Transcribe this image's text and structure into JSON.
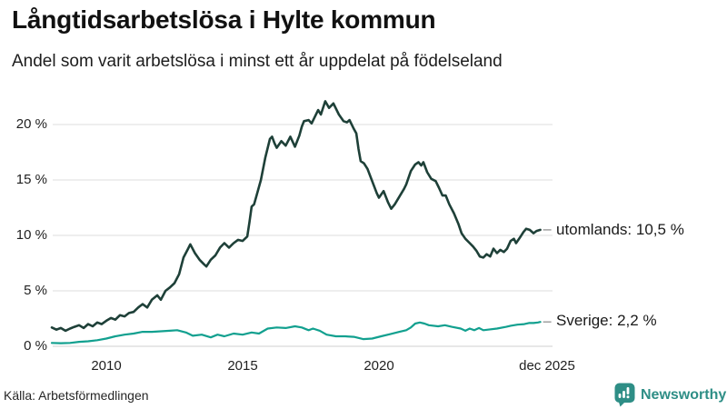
{
  "chart_data": {
    "type": "line",
    "title": "Långtidsarbetslösa i Hylte kommun",
    "subtitle": "Andel som varit arbetslösa i minst ett år uppdelat på födelseland",
    "xlabel": "",
    "ylabel": "",
    "xlim": [
      2008,
      2026.3
    ],
    "ylim": [
      0,
      22.5
    ],
    "grid": "horizontal",
    "legend_position": "end-of-line labels at right",
    "y_ticks": [
      {
        "label": "20 %",
        "value": 20
      },
      {
        "label": "15 %",
        "value": 15
      },
      {
        "label": "10 %",
        "value": 10
      },
      {
        "label": "5 %",
        "value": 5
      },
      {
        "label": "0 %",
        "value": 0
      }
    ],
    "x_ticks": [
      {
        "label": "2010",
        "year": 2010
      },
      {
        "label": "2015",
        "year": 2015
      },
      {
        "label": "2020",
        "year": 2020
      },
      {
        "label": "dec 2025",
        "year": 2025.92
      }
    ],
    "series": [
      {
        "name": "utomlands",
        "color": "#1e4038",
        "end_value": 10.5,
        "end_label": "utomlands: 10,5 %",
        "points": [
          [
            2008.0,
            1.7
          ],
          [
            2008.17,
            1.5
          ],
          [
            2008.33,
            1.65
          ],
          [
            2008.5,
            1.4
          ],
          [
            2008.67,
            1.6
          ],
          [
            2008.83,
            1.75
          ],
          [
            2009.0,
            1.9
          ],
          [
            2009.17,
            1.65
          ],
          [
            2009.33,
            2.0
          ],
          [
            2009.5,
            1.8
          ],
          [
            2009.67,
            2.15
          ],
          [
            2009.83,
            2.0
          ],
          [
            2010.0,
            2.3
          ],
          [
            2010.17,
            2.55
          ],
          [
            2010.33,
            2.4
          ],
          [
            2010.5,
            2.8
          ],
          [
            2010.67,
            2.7
          ],
          [
            2010.83,
            3.0
          ],
          [
            2011.0,
            3.1
          ],
          [
            2011.17,
            3.5
          ],
          [
            2011.33,
            3.8
          ],
          [
            2011.5,
            3.5
          ],
          [
            2011.67,
            4.2
          ],
          [
            2011.87,
            4.6
          ],
          [
            2012.0,
            4.2
          ],
          [
            2012.17,
            5.0
          ],
          [
            2012.33,
            5.3
          ],
          [
            2012.5,
            5.7
          ],
          [
            2012.67,
            6.5
          ],
          [
            2012.83,
            8.0
          ],
          [
            2013.0,
            8.8
          ],
          [
            2013.08,
            9.2
          ],
          [
            2013.25,
            8.4
          ],
          [
            2013.42,
            7.8
          ],
          [
            2013.58,
            7.4
          ],
          [
            2013.67,
            7.2
          ],
          [
            2013.83,
            7.8
          ],
          [
            2014.0,
            8.2
          ],
          [
            2014.17,
            8.9
          ],
          [
            2014.33,
            9.3
          ],
          [
            2014.5,
            8.9
          ],
          [
            2014.67,
            9.3
          ],
          [
            2014.83,
            9.6
          ],
          [
            2015.0,
            9.5
          ],
          [
            2015.17,
            9.9
          ],
          [
            2015.25,
            11.2
          ],
          [
            2015.33,
            12.6
          ],
          [
            2015.42,
            12.8
          ],
          [
            2015.5,
            13.5
          ],
          [
            2015.67,
            15.0
          ],
          [
            2015.83,
            17.0
          ],
          [
            2016.0,
            18.7
          ],
          [
            2016.08,
            18.9
          ],
          [
            2016.17,
            18.3
          ],
          [
            2016.25,
            17.9
          ],
          [
            2016.42,
            18.5
          ],
          [
            2016.58,
            18.1
          ],
          [
            2016.75,
            18.9
          ],
          [
            2016.92,
            18.0
          ],
          [
            2017.08,
            19.0
          ],
          [
            2017.17,
            19.8
          ],
          [
            2017.25,
            20.3
          ],
          [
            2017.42,
            20.4
          ],
          [
            2017.53,
            20.1
          ],
          [
            2017.67,
            20.8
          ],
          [
            2017.77,
            21.3
          ],
          [
            2017.87,
            20.9
          ],
          [
            2018.03,
            22.1
          ],
          [
            2018.17,
            21.5
          ],
          [
            2018.33,
            21.9
          ],
          [
            2018.53,
            20.9
          ],
          [
            2018.7,
            20.3
          ],
          [
            2018.83,
            20.2
          ],
          [
            2018.92,
            20.4
          ],
          [
            2019.08,
            19.6
          ],
          [
            2019.17,
            19.2
          ],
          [
            2019.25,
            17.8
          ],
          [
            2019.33,
            16.7
          ],
          [
            2019.45,
            16.5
          ],
          [
            2019.58,
            16.0
          ],
          [
            2019.75,
            14.9
          ],
          [
            2019.92,
            13.8
          ],
          [
            2020.0,
            13.4
          ],
          [
            2020.17,
            14.0
          ],
          [
            2020.33,
            13.0
          ],
          [
            2020.45,
            12.4
          ],
          [
            2020.58,
            12.8
          ],
          [
            2020.75,
            13.5
          ],
          [
            2020.92,
            14.2
          ],
          [
            2021.0,
            14.6
          ],
          [
            2021.17,
            15.8
          ],
          [
            2021.33,
            16.4
          ],
          [
            2021.45,
            16.6
          ],
          [
            2021.55,
            16.3
          ],
          [
            2021.63,
            16.6
          ],
          [
            2021.77,
            15.7
          ],
          [
            2021.92,
            15.1
          ],
          [
            2022.08,
            14.9
          ],
          [
            2022.2,
            14.3
          ],
          [
            2022.33,
            13.6
          ],
          [
            2022.45,
            13.6
          ],
          [
            2022.58,
            12.8
          ],
          [
            2022.75,
            12.0
          ],
          [
            2022.92,
            11.0
          ],
          [
            2023.03,
            10.2
          ],
          [
            2023.17,
            9.7
          ],
          [
            2023.33,
            9.3
          ],
          [
            2023.45,
            9.0
          ],
          [
            2023.58,
            8.6
          ],
          [
            2023.7,
            8.1
          ],
          [
            2023.83,
            8.0
          ],
          [
            2023.95,
            8.3
          ],
          [
            2024.08,
            8.1
          ],
          [
            2024.2,
            8.8
          ],
          [
            2024.33,
            8.4
          ],
          [
            2024.45,
            8.7
          ],
          [
            2024.58,
            8.5
          ],
          [
            2024.7,
            8.8
          ],
          [
            2024.83,
            9.5
          ],
          [
            2024.95,
            9.7
          ],
          [
            2025.03,
            9.3
          ],
          [
            2025.17,
            9.8
          ],
          [
            2025.3,
            10.3
          ],
          [
            2025.4,
            10.6
          ],
          [
            2025.53,
            10.5
          ],
          [
            2025.67,
            10.2
          ],
          [
            2025.78,
            10.4
          ],
          [
            2025.92,
            10.5
          ]
        ]
      },
      {
        "name": "Sverige",
        "color": "#12a08f",
        "end_value": 2.2,
        "end_label": "Sverige:  2,2 %",
        "points": [
          [
            2008.0,
            0.3
          ],
          [
            2008.33,
            0.28
          ],
          [
            2008.67,
            0.3
          ],
          [
            2009.0,
            0.4
          ],
          [
            2009.33,
            0.45
          ],
          [
            2009.67,
            0.55
          ],
          [
            2010.0,
            0.7
          ],
          [
            2010.33,
            0.9
          ],
          [
            2010.67,
            1.05
          ],
          [
            2011.0,
            1.15
          ],
          [
            2011.33,
            1.3
          ],
          [
            2011.67,
            1.3
          ],
          [
            2012.0,
            1.35
          ],
          [
            2012.33,
            1.4
          ],
          [
            2012.6,
            1.45
          ],
          [
            2012.92,
            1.25
          ],
          [
            2013.17,
            0.95
          ],
          [
            2013.5,
            1.05
          ],
          [
            2013.83,
            0.8
          ],
          [
            2014.08,
            1.05
          ],
          [
            2014.33,
            0.9
          ],
          [
            2014.67,
            1.15
          ],
          [
            2015.0,
            1.05
          ],
          [
            2015.33,
            1.25
          ],
          [
            2015.6,
            1.15
          ],
          [
            2015.92,
            1.6
          ],
          [
            2016.25,
            1.7
          ],
          [
            2016.58,
            1.65
          ],
          [
            2016.92,
            1.8
          ],
          [
            2017.17,
            1.7
          ],
          [
            2017.42,
            1.45
          ],
          [
            2017.58,
            1.6
          ],
          [
            2017.83,
            1.4
          ],
          [
            2018.08,
            1.05
          ],
          [
            2018.42,
            0.9
          ],
          [
            2018.75,
            0.9
          ],
          [
            2019.08,
            0.85
          ],
          [
            2019.42,
            0.65
          ],
          [
            2019.75,
            0.7
          ],
          [
            2020.08,
            0.9
          ],
          [
            2020.42,
            1.1
          ],
          [
            2020.75,
            1.3
          ],
          [
            2021.0,
            1.45
          ],
          [
            2021.17,
            1.7
          ],
          [
            2021.33,
            2.05
          ],
          [
            2021.5,
            2.15
          ],
          [
            2021.67,
            2.05
          ],
          [
            2021.83,
            1.9
          ],
          [
            2022.17,
            1.8
          ],
          [
            2022.42,
            1.9
          ],
          [
            2022.67,
            1.75
          ],
          [
            2023.0,
            1.6
          ],
          [
            2023.17,
            1.4
          ],
          [
            2023.33,
            1.6
          ],
          [
            2023.5,
            1.45
          ],
          [
            2023.67,
            1.65
          ],
          [
            2023.83,
            1.45
          ],
          [
            2024.0,
            1.5
          ],
          [
            2024.33,
            1.6
          ],
          [
            2024.67,
            1.75
          ],
          [
            2024.83,
            1.85
          ],
          [
            2025.08,
            1.95
          ],
          [
            2025.33,
            2.0
          ],
          [
            2025.5,
            2.1
          ],
          [
            2025.67,
            2.1
          ],
          [
            2025.83,
            2.15
          ],
          [
            2025.92,
            2.2
          ]
        ]
      }
    ],
    "gridline_color": "#dedede",
    "axis_line_color": "#cfcfcf",
    "leader_dash_color": "#999999"
  },
  "footer": {
    "source": "Källa: Arbetsförmedlingen",
    "brand": "Newsworthy",
    "brand_color": "#2e8e86"
  }
}
